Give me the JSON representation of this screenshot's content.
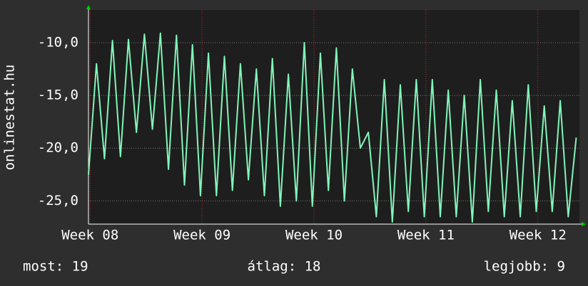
{
  "chart_data": {
    "type": "line",
    "ylabel": "onlinestat.hu",
    "x": [
      0,
      0.5,
      1,
      1.5,
      2,
      2.5,
      3,
      3.5,
      4,
      4.5,
      5,
      5.5,
      6,
      6.5,
      7,
      7.5,
      8,
      8.5,
      9,
      9.5,
      10,
      10.5,
      11,
      11.5,
      12,
      12.5,
      13,
      13.5,
      14,
      14.5,
      15,
      15.5,
      16,
      16.5,
      17,
      17.5,
      18,
      18.5,
      19,
      19.5,
      20,
      20.5,
      21,
      21.5,
      22,
      22.5,
      23,
      23.5,
      24,
      24.5,
      25,
      25.5,
      26,
      26.5,
      27,
      27.5,
      28,
      28.5,
      29,
      29.5,
      30,
      30.5
    ],
    "values": [
      -22.5,
      -12,
      -21,
      -9.8,
      -20.8,
      -9.7,
      -18.5,
      -9.2,
      -18.2,
      -9.1,
      -22,
      -9.3,
      -23.5,
      -10.2,
      -24.5,
      -11,
      -24.5,
      -11.3,
      -24,
      -12,
      -23,
      -12.5,
      -24.5,
      -11.5,
      -25.5,
      -13,
      -25,
      -10,
      -25.5,
      -11,
      -24,
      -10.5,
      -25,
      -12.5,
      -20,
      -18.5,
      -26.5,
      -13.5,
      -27,
      -14,
      -26,
      -13.5,
      -26.5,
      -13.5,
      -26.5,
      -14.5,
      -26.5,
      -15,
      -27,
      -13.5,
      -26,
      -14.5,
      -26.5,
      -15.5,
      -26.5,
      -14,
      -26,
      -16,
      -26,
      -15.5,
      -26.5,
      -19
    ],
    "color": "#80f5b8",
    "xlim": [
      0,
      30.7
    ],
    "xticks": [
      {
        "value": 0.1,
        "label": "Week 08"
      },
      {
        "value": 7.1,
        "label": "Week 09"
      },
      {
        "value": 14.1,
        "label": "Week 10"
      },
      {
        "value": 21.1,
        "label": "Week 11"
      },
      {
        "value": 28.1,
        "label": "Week 12"
      }
    ],
    "ylim": [
      -27.2,
      -6.9
    ],
    "yticks": [
      {
        "value": -25,
        "label": "-25,0"
      },
      {
        "value": -20,
        "label": "-20,0"
      },
      {
        "value": -15,
        "label": "-15,0"
      },
      {
        "value": -10,
        "label": "-10,0"
      }
    ],
    "grid": true,
    "annotations": [
      "most: 19",
      "átlag: 18",
      "legjobb: 9"
    ]
  }
}
